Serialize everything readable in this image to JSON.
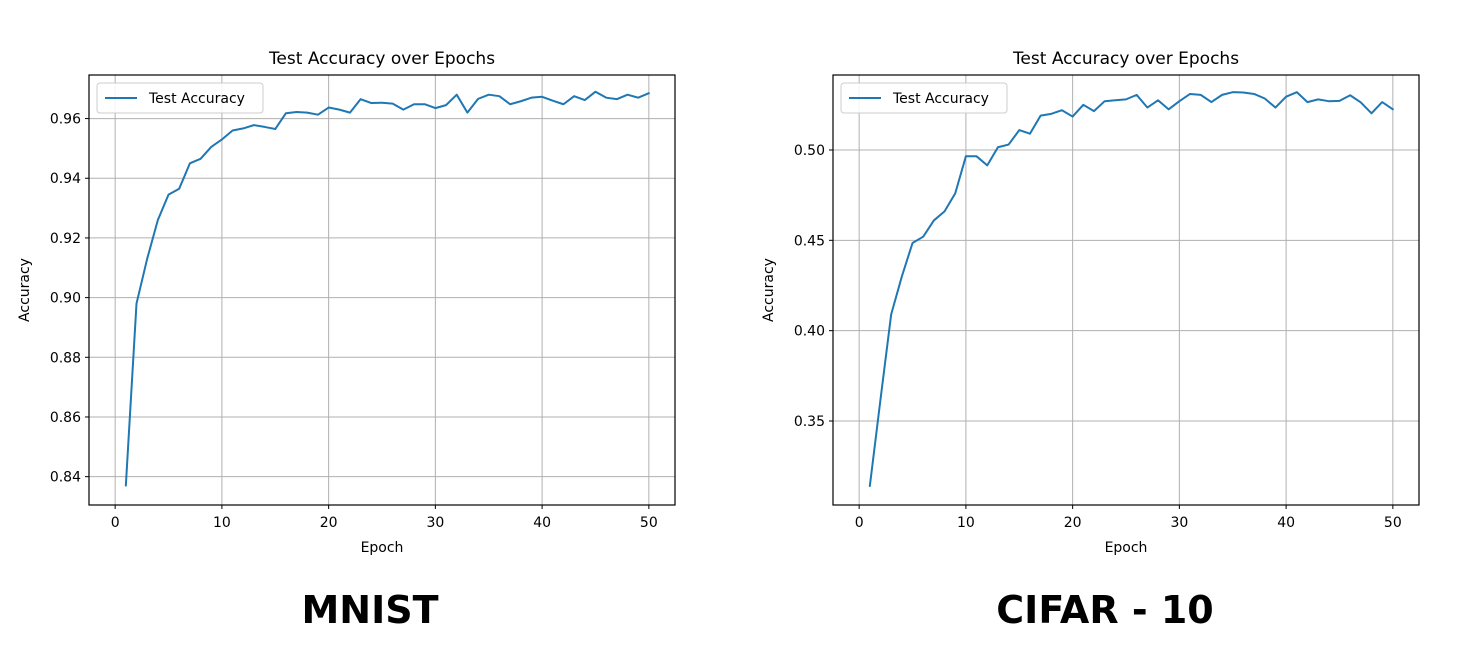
{
  "colors": {
    "series": "#1f77b4",
    "grid": "#b0b0b0",
    "axes": "#000000",
    "background": "#ffffff"
  },
  "captions": {
    "left": "MNIST",
    "right": "CIFAR - 10"
  },
  "chart_data": [
    {
      "type": "line",
      "title": "Test Accuracy over Epochs",
      "xlabel": "Epoch",
      "ylabel": "Accuracy",
      "xlim": [
        -2.45,
        52.45
      ],
      "ylim": [
        0.8305,
        0.9746
      ],
      "xticks": [
        "0",
        "10",
        "20",
        "30",
        "40",
        "50"
      ],
      "yticks": [
        "0.84",
        "0.86",
        "0.88",
        "0.90",
        "0.92",
        "0.94",
        "0.96"
      ],
      "grid": true,
      "legend": "top-left",
      "series": [
        {
          "name": "Test Accuracy",
          "x": [
            1,
            2,
            3,
            4,
            5,
            6,
            7,
            8,
            9,
            10,
            11,
            12,
            13,
            14,
            15,
            16,
            17,
            18,
            19,
            20,
            21,
            22,
            23,
            24,
            25,
            26,
            27,
            28,
            29,
            30,
            31,
            32,
            33,
            34,
            35,
            36,
            37,
            38,
            39,
            40,
            41,
            42,
            43,
            44,
            45,
            46,
            47,
            48,
            49,
            50
          ],
          "values": [
            0.837,
            0.898,
            0.913,
            0.926,
            0.9345,
            0.9365,
            0.945,
            0.9465,
            0.9505,
            0.953,
            0.956,
            0.9567,
            0.9578,
            0.9572,
            0.9565,
            0.9618,
            0.9622,
            0.962,
            0.9613,
            0.9637,
            0.963,
            0.962,
            0.9665,
            0.9652,
            0.9653,
            0.965,
            0.963,
            0.9648,
            0.9648,
            0.9635,
            0.9645,
            0.968,
            0.962,
            0.9666,
            0.968,
            0.9675,
            0.9648,
            0.9658,
            0.967,
            0.9673,
            0.966,
            0.9648,
            0.9675,
            0.9662,
            0.969,
            0.967,
            0.9665,
            0.968,
            0.967,
            0.9685
          ]
        }
      ]
    },
    {
      "type": "line",
      "title": "Test Accuracy over Epochs",
      "xlabel": "Epoch",
      "ylabel": "Accuracy",
      "xlim": [
        -2.45,
        52.45
      ],
      "ylim": [
        0.3035,
        0.5415
      ],
      "xticks": [
        "0",
        "10",
        "20",
        "30",
        "40",
        "50"
      ],
      "yticks": [
        "0.35",
        "0.40",
        "0.45",
        "0.50"
      ],
      "grid": true,
      "legend": "top-left",
      "series": [
        {
          "name": "Test Accuracy",
          "x": [
            1,
            2,
            3,
            4,
            5,
            6,
            7,
            8,
            9,
            10,
            11,
            12,
            13,
            14,
            15,
            16,
            17,
            18,
            19,
            20,
            21,
            22,
            23,
            24,
            25,
            26,
            27,
            28,
            29,
            30,
            31,
            32,
            33,
            34,
            35,
            36,
            37,
            38,
            39,
            40,
            41,
            42,
            43,
            44,
            45,
            46,
            47,
            48,
            49,
            50
          ],
          "values": [
            0.314,
            0.362,
            0.409,
            0.43,
            0.4485,
            0.452,
            0.461,
            0.466,
            0.476,
            0.4965,
            0.4965,
            0.4915,
            0.5015,
            0.503,
            0.511,
            0.509,
            0.519,
            0.52,
            0.522,
            0.5185,
            0.525,
            0.5215,
            0.527,
            0.5275,
            0.528,
            0.5305,
            0.5235,
            0.5275,
            0.5225,
            0.527,
            0.531,
            0.5305,
            0.5265,
            0.5305,
            0.532,
            0.5318,
            0.531,
            0.5285,
            0.5235,
            0.5295,
            0.532,
            0.5265,
            0.528,
            0.527,
            0.5272,
            0.5303,
            0.5263,
            0.5203,
            0.5265,
            0.5225
          ]
        }
      ]
    }
  ]
}
